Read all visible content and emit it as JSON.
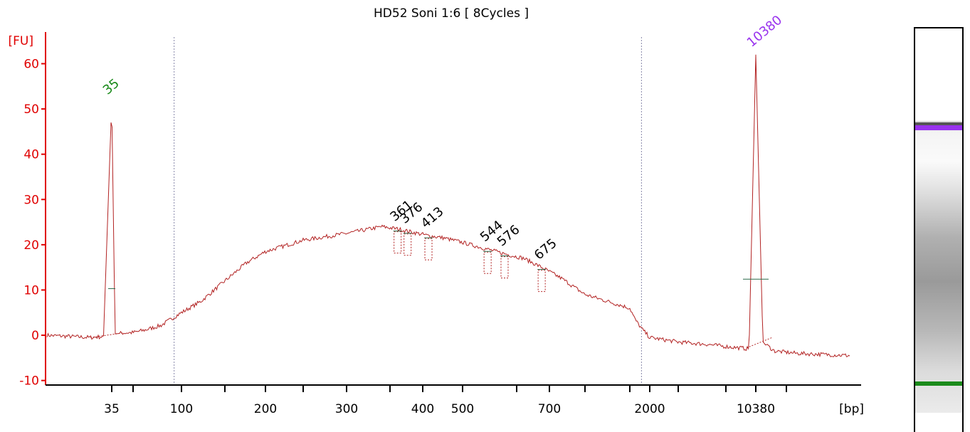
{
  "chart_data": {
    "type": "line",
    "title": "HD52 Soni 1:6  [ 8Cycles ]",
    "ylabel": "[FU]",
    "xlabel": "[bp]",
    "ylim": [
      -11,
      67
    ],
    "yticks": [
      -10,
      0,
      10,
      20,
      30,
      40,
      50,
      60
    ],
    "xticks": [
      {
        "label": "35",
        "bp": 35
      },
      {
        "label": "",
        "bp": 50
      },
      {
        "label": "100",
        "bp": 100
      },
      {
        "label": "",
        "bp": 150
      },
      {
        "label": "200",
        "bp": 200
      },
      {
        "label": "",
        "bp": 250
      },
      {
        "label": "300",
        "bp": 300
      },
      {
        "label": "",
        "bp": 350
      },
      {
        "label": "400",
        "bp": 400
      },
      {
        "label": "500",
        "bp": 500
      },
      {
        "label": "",
        "bp": 600
      },
      {
        "label": "700",
        "bp": 700
      },
      {
        "label": "",
        "bp": 850
      },
      {
        "label": "",
        "bp": 1000
      },
      {
        "label": "2000",
        "bp": 2000
      },
      {
        "label": "",
        "bp": 3000
      },
      {
        "label": "",
        "bp": 7000
      },
      {
        "label": "10380",
        "bp": 10380
      },
      {
        "label": "",
        "bp": 15000
      }
    ],
    "marker_lines_bp": [
      90,
      1500
    ],
    "peaks": [
      {
        "label": "35",
        "bp": 35,
        "fu": 51.5,
        "color": "#1a8a1a"
      },
      {
        "label": "361",
        "bp": 361,
        "fu": 23.5,
        "color": "#000000"
      },
      {
        "label": "376",
        "bp": 376,
        "fu": 23.0,
        "color": "#000000"
      },
      {
        "label": "413",
        "bp": 413,
        "fu": 22.0,
        "color": "#000000"
      },
      {
        "label": "544",
        "bp": 544,
        "fu": 19.0,
        "color": "#000000"
      },
      {
        "label": "576",
        "bp": 576,
        "fu": 18.0,
        "color": "#000000"
      },
      {
        "label": "675",
        "bp": 675,
        "fu": 15.0,
        "color": "#000000"
      },
      {
        "label": "10380",
        "bp": 10380,
        "fu": 62.0,
        "color": "#9933ee"
      }
    ],
    "trace": [
      [
        22,
        0.0
      ],
      [
        30,
        -0.5
      ],
      [
        33,
        -0.3
      ],
      [
        35,
        51.5
      ],
      [
        37,
        0.3
      ],
      [
        42,
        0.5
      ],
      [
        50,
        0.6
      ],
      [
        60,
        1.2
      ],
      [
        75,
        2.2
      ],
      [
        90,
        4.0
      ],
      [
        100,
        5.0
      ],
      [
        120,
        7.5
      ],
      [
        150,
        12.0
      ],
      [
        175,
        16.0
      ],
      [
        200,
        18.5
      ],
      [
        250,
        21.0
      ],
      [
        300,
        22.5
      ],
      [
        340,
        24.0
      ],
      [
        361,
        23.5
      ],
      [
        376,
        23.0
      ],
      [
        413,
        22.0
      ],
      [
        450,
        21.5
      ],
      [
        500,
        20.5
      ],
      [
        544,
        19.0
      ],
      [
        576,
        18.0
      ],
      [
        620,
        17.0
      ],
      [
        675,
        15.0
      ],
      [
        750,
        12.5
      ],
      [
        850,
        9.0
      ],
      [
        1000,
        6.0
      ],
      [
        1200,
        3.5
      ],
      [
        1500,
        1.5
      ],
      [
        2000,
        -0.5
      ],
      [
        3000,
        -1.5
      ],
      [
        5000,
        -2.0
      ],
      [
        7000,
        -2.5
      ],
      [
        9500,
        -3.0
      ],
      [
        10380,
        62.0
      ],
      [
        11300,
        -1.5
      ],
      [
        13000,
        -3.5
      ],
      [
        16000,
        -4.0
      ],
      [
        22000,
        -4.5
      ]
    ]
  },
  "colors": {
    "axis": "#e00000",
    "trace": "#b22222",
    "marker_line": "#8888aa",
    "lower_marker": "#1a8a1a",
    "upper_marker": "#9933ee"
  }
}
